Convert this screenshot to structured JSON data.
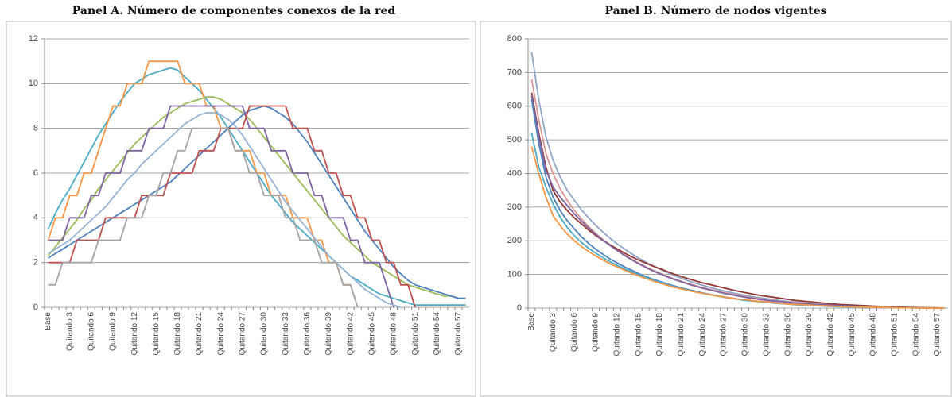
{
  "chart_data": [
    {
      "type": "line",
      "title": "Panel A. Número de componentes conexos de la red",
      "categories": [
        "Base",
        null,
        null,
        "Quitando 3",
        null,
        null,
        "Quitando 6",
        null,
        null,
        "Quitando 9",
        null,
        null,
        "Quitando 12",
        null,
        null,
        "Quitando 15",
        null,
        null,
        "Quitando 18",
        null,
        null,
        "Quitando 21",
        null,
        null,
        "Quitando 24",
        null,
        null,
        "Quitando 27",
        null,
        null,
        "Quitando 30",
        null,
        null,
        "Quitando 33",
        null,
        null,
        "Quitando 36",
        null,
        null,
        "Quitando 39",
        null,
        null,
        "Quitando 42",
        null,
        null,
        "Quitando 45",
        null,
        null,
        "Quitando 48",
        null,
        null,
        "Quitando 51",
        null,
        null,
        "Quitando 54",
        null,
        null,
        "Quitando 57",
        null
      ],
      "ylim": [
        0,
        12
      ],
      "yticks": [
        0,
        2,
        4,
        6,
        8,
        10,
        12
      ],
      "grid": true,
      "series": [
        {
          "color": "#4aacc6",
          "values": [
            3.5,
            4.2,
            4.8,
            5.3,
            5.9,
            6.5,
            7.1,
            7.7,
            8.2,
            8.7,
            9.2,
            9.6,
            10.0,
            10.2,
            10.4,
            10.5,
            10.6,
            10.7,
            10.6,
            10.3,
            10.0,
            9.7,
            9.3,
            8.9,
            8.5,
            8.0,
            7.5,
            7.0,
            6.5,
            6.0,
            5.5,
            5.0,
            4.6,
            4.2,
            3.8,
            3.5,
            3.2,
            2.9,
            2.6,
            2.3,
            2.0,
            1.7,
            1.4,
            1.2,
            1.0,
            0.8,
            0.6,
            0.5,
            0.4,
            0.3,
            0.2,
            0.1,
            0.1,
            0.1,
            0.1,
            0.1,
            0.1,
            0.1,
            0.1
          ]
        },
        {
          "color": "#f79646",
          "values": [
            3,
            4,
            4,
            5,
            5,
            6,
            6,
            7,
            8,
            9,
            9,
            10,
            10,
            10,
            11,
            11,
            11,
            11,
            11,
            10,
            10,
            10,
            9,
            9,
            8,
            8,
            7,
            7,
            7,
            6,
            6,
            5,
            5,
            5,
            4,
            4,
            4,
            3,
            3,
            2,
            2,
            1,
            1,
            0,
            null,
            null,
            null,
            null,
            null,
            null,
            null,
            null,
            null,
            null,
            null,
            null,
            null,
            null,
            null
          ]
        },
        {
          "color": "#9bbb59",
          "values": [
            2.3,
            2.7,
            3.1,
            3.5,
            3.9,
            4.4,
            4.8,
            5.3,
            5.7,
            6.1,
            6.5,
            6.9,
            7.3,
            7.6,
            7.9,
            8.2,
            8.5,
            8.7,
            8.9,
            9.1,
            9.2,
            9.3,
            9.4,
            9.4,
            9.3,
            9.1,
            8.9,
            8.7,
            8.4,
            8.0,
            7.6,
            7.2,
            6.8,
            6.4,
            6.0,
            5.6,
            5.2,
            4.8,
            4.4,
            4.0,
            3.6,
            3.2,
            2.9,
            2.6,
            2.3,
            2.0,
            1.8,
            1.6,
            1.4,
            1.2,
            1.0,
            0.9,
            0.8,
            0.7,
            0.6,
            0.5,
            0.5,
            0.4,
            0.4
          ]
        },
        {
          "color": "#4f81bd",
          "values": [
            2.2,
            2.4,
            2.6,
            2.8,
            3.0,
            3.2,
            3.4,
            3.6,
            3.8,
            4.0,
            4.2,
            4.4,
            4.6,
            4.8,
            5.0,
            5.2,
            5.4,
            5.6,
            5.9,
            6.2,
            6.5,
            6.8,
            7.1,
            7.4,
            7.7,
            8.0,
            8.3,
            8.6,
            8.8,
            8.9,
            9.0,
            8.9,
            8.7,
            8.5,
            8.2,
            7.8,
            7.4,
            6.9,
            6.4,
            5.9,
            5.4,
            4.9,
            4.4,
            3.9,
            3.4,
            3.0,
            2.6,
            2.2,
            1.8,
            1.5,
            1.2,
            1.0,
            0.9,
            0.8,
            0.7,
            0.6,
            0.5,
            0.4,
            0.4
          ]
        },
        {
          "color": "#7f64a2",
          "values": [
            3,
            3,
            3,
            4,
            4,
            4,
            5,
            5,
            6,
            6,
            6,
            7,
            7,
            7,
            8,
            8,
            8,
            9,
            9,
            9,
            9,
            9,
            9,
            9,
            9,
            9,
            9,
            9,
            8,
            8,
            8,
            7,
            7,
            7,
            6,
            6,
            6,
            5,
            5,
            4,
            4,
            4,
            3,
            3,
            2,
            2,
            2,
            1,
            0,
            null,
            null,
            null,
            null,
            null,
            null,
            null,
            null,
            null,
            null
          ]
        },
        {
          "color": "#c0504d",
          "values": [
            2,
            2,
            2,
            2,
            3,
            3,
            3,
            3,
            4,
            4,
            4,
            4,
            4,
            5,
            5,
            5,
            5,
            6,
            6,
            6,
            6,
            7,
            7,
            7,
            8,
            8,
            8,
            8,
            9,
            9,
            9,
            9,
            9,
            9,
            8,
            8,
            8,
            7,
            7,
            6,
            6,
            5,
            5,
            4,
            4,
            3,
            3,
            2,
            2,
            1,
            1,
            0,
            null,
            null,
            null,
            null,
            null,
            null,
            null
          ]
        },
        {
          "color": "#95b3d7",
          "values": [
            2.4,
            2.6,
            2.8,
            3.0,
            3.3,
            3.6,
            3.9,
            4.2,
            4.5,
            4.9,
            5.3,
            5.7,
            6.0,
            6.4,
            6.7,
            7.0,
            7.3,
            7.6,
            7.9,
            8.2,
            8.4,
            8.6,
            8.7,
            8.7,
            8.6,
            8.4,
            8.1,
            7.7,
            7.2,
            6.7,
            6.2,
            5.7,
            5.2,
            4.7,
            4.3,
            3.9,
            3.5,
            3.1,
            2.7,
            2.3,
            2.0,
            1.7,
            1.4,
            1.1,
            0.8,
            0.6,
            0.4,
            0.2,
            0.1,
            0.0,
            null,
            null,
            null,
            null,
            null,
            null,
            null,
            null,
            null
          ]
        },
        {
          "color": "#a5a5a5",
          "values": [
            1,
            1,
            2,
            2,
            2,
            2,
            2,
            3,
            3,
            3,
            3,
            4,
            4,
            4,
            5,
            5,
            6,
            6,
            7,
            7,
            8,
            8,
            8,
            8,
            8,
            8,
            7,
            7,
            6,
            6,
            5,
            5,
            5,
            4,
            4,
            3,
            3,
            3,
            2,
            2,
            2,
            1,
            1,
            0,
            null,
            null,
            null,
            null,
            null,
            null,
            null,
            null,
            null,
            null,
            null,
            null,
            null,
            null,
            null
          ]
        }
      ]
    },
    {
      "type": "line",
      "title": "Panel B. Número de nodos vigentes",
      "categories": [
        "Base",
        null,
        null,
        "Quitando 3",
        null,
        null,
        "Quitando 6",
        null,
        null,
        "Quitando 9",
        null,
        null,
        "Quitando 12",
        null,
        null,
        "Quitando 15",
        null,
        null,
        "Quitando 18",
        null,
        null,
        "Quitando 21",
        null,
        null,
        "Quitando 24",
        null,
        null,
        "Quitando 27",
        null,
        null,
        "Quitando 30",
        null,
        null,
        "Quitando 33",
        null,
        null,
        "Quitando 36",
        null,
        null,
        "Quitando 39",
        null,
        null,
        "Quitando 42",
        null,
        null,
        "Quitando 45",
        null,
        null,
        "Quitando 48",
        null,
        null,
        "Quitando 51",
        null,
        null,
        "Quitando 54",
        null,
        null,
        "Quitando 57",
        null
      ],
      "ylim": [
        0,
        800
      ],
      "yticks": [
        0,
        100,
        200,
        300,
        400,
        500,
        600,
        700,
        800
      ],
      "grid": true,
      "series": [
        {
          "color": "#8ea4c8",
          "values": [
            760,
            620,
            510,
            440,
            390,
            350,
            320,
            292,
            268,
            246,
            226,
            208,
            191,
            176,
            162,
            149,
            137,
            126,
            116,
            106,
            97,
            89,
            81,
            74,
            68,
            62,
            56,
            51,
            46,
            42,
            38,
            34,
            31,
            28,
            25,
            22,
            20,
            18,
            16,
            14,
            12,
            11,
            10,
            9,
            8,
            7,
            6,
            5,
            4,
            3,
            3,
            2,
            2,
            1,
            1,
            1,
            0,
            0,
            0
          ]
        },
        {
          "color": "#d99694",
          "values": [
            680,
            560,
            460,
            400,
            355,
            320,
            290,
            265,
            242,
            222,
            204,
            188,
            173,
            159,
            146,
            134,
            123,
            113,
            104,
            95,
            87,
            80,
            73,
            67,
            61,
            56,
            51,
            46,
            42,
            38,
            34,
            31,
            28,
            25,
            22,
            20,
            18,
            16,
            14,
            12,
            11,
            10,
            9,
            8,
            7,
            6,
            5,
            4,
            3,
            3,
            2,
            2,
            1,
            1,
            1,
            0,
            0,
            0,
            0
          ]
        },
        {
          "color": "#943634",
          "values": [
            640,
            520,
            420,
            350,
            315,
            290,
            268,
            250,
            232,
            216,
            201,
            188,
            176,
            164,
            153,
            143,
            134,
            125,
            117,
            109,
            101,
            94,
            87,
            81,
            75,
            70,
            65,
            60,
            55,
            50,
            46,
            42,
            38,
            35,
            32,
            29,
            26,
            23,
            21,
            19,
            17,
            15,
            13,
            11,
            10,
            9,
            8,
            7,
            6,
            5,
            4,
            3,
            3,
            2,
            2,
            1,
            1,
            1,
            0
          ]
        },
        {
          "color": "#7f64a2",
          "values": [
            630,
            510,
            410,
            360,
            330,
            305,
            280,
            258,
            238,
            219,
            202,
            186,
            171,
            157,
            144,
            132,
            121,
            111,
            102,
            93,
            85,
            78,
            71,
            65,
            59,
            54,
            49,
            44,
            40,
            36,
            32,
            29,
            26,
            23,
            21,
            19,
            17,
            15,
            13,
            12,
            11,
            10,
            9,
            8,
            7,
            6,
            5,
            4,
            3,
            3,
            2,
            2,
            1,
            1,
            1,
            1,
            0,
            0,
            0
          ]
        },
        {
          "color": "#4f81bd",
          "values": [
            620,
            490,
            390,
            330,
            290,
            260,
            235,
            212,
            192,
            175,
            160,
            146,
            134,
            123,
            113,
            103,
            94,
            86,
            79,
            72,
            66,
            60,
            55,
            50,
            45,
            41,
            37,
            33,
            30,
            27,
            24,
            22,
            20,
            18,
            16,
            14,
            12,
            11,
            10,
            9,
            8,
            7,
            6,
            5,
            4,
            4,
            3,
            3,
            2,
            2,
            2,
            1,
            1,
            1,
            1,
            0,
            0,
            0,
            0
          ]
        },
        {
          "color": "#4aacc6",
          "values": [
            520,
            420,
            360,
            310,
            270,
            240,
            215,
            195,
            178,
            163,
            150,
            138,
            127,
            117,
            108,
            99,
            91,
            84,
            77,
            70,
            64,
            58,
            53,
            48,
            44,
            40,
            36,
            32,
            29,
            26,
            23,
            21,
            19,
            17,
            15,
            13,
            12,
            10,
            9,
            8,
            7,
            6,
            5,
            4,
            4,
            3,
            3,
            2,
            2,
            2,
            1,
            1,
            1,
            1,
            0,
            0,
            0,
            0,
            0
          ]
        },
        {
          "color": "#f79646",
          "values": [
            480,
            400,
            330,
            275,
            245,
            220,
            200,
            183,
            168,
            155,
            143,
            132,
            122,
            113,
            104,
            96,
            88,
            81,
            74,
            68,
            62,
            57,
            52,
            48,
            44,
            40,
            36,
            33,
            30,
            27,
            25,
            22,
            20,
            18,
            16,
            14,
            12,
            11,
            10,
            9,
            8,
            7,
            6,
            5,
            4,
            4,
            3,
            3,
            2,
            2,
            2,
            1,
            1,
            1,
            1,
            0,
            0,
            0,
            0
          ]
        }
      ]
    }
  ]
}
